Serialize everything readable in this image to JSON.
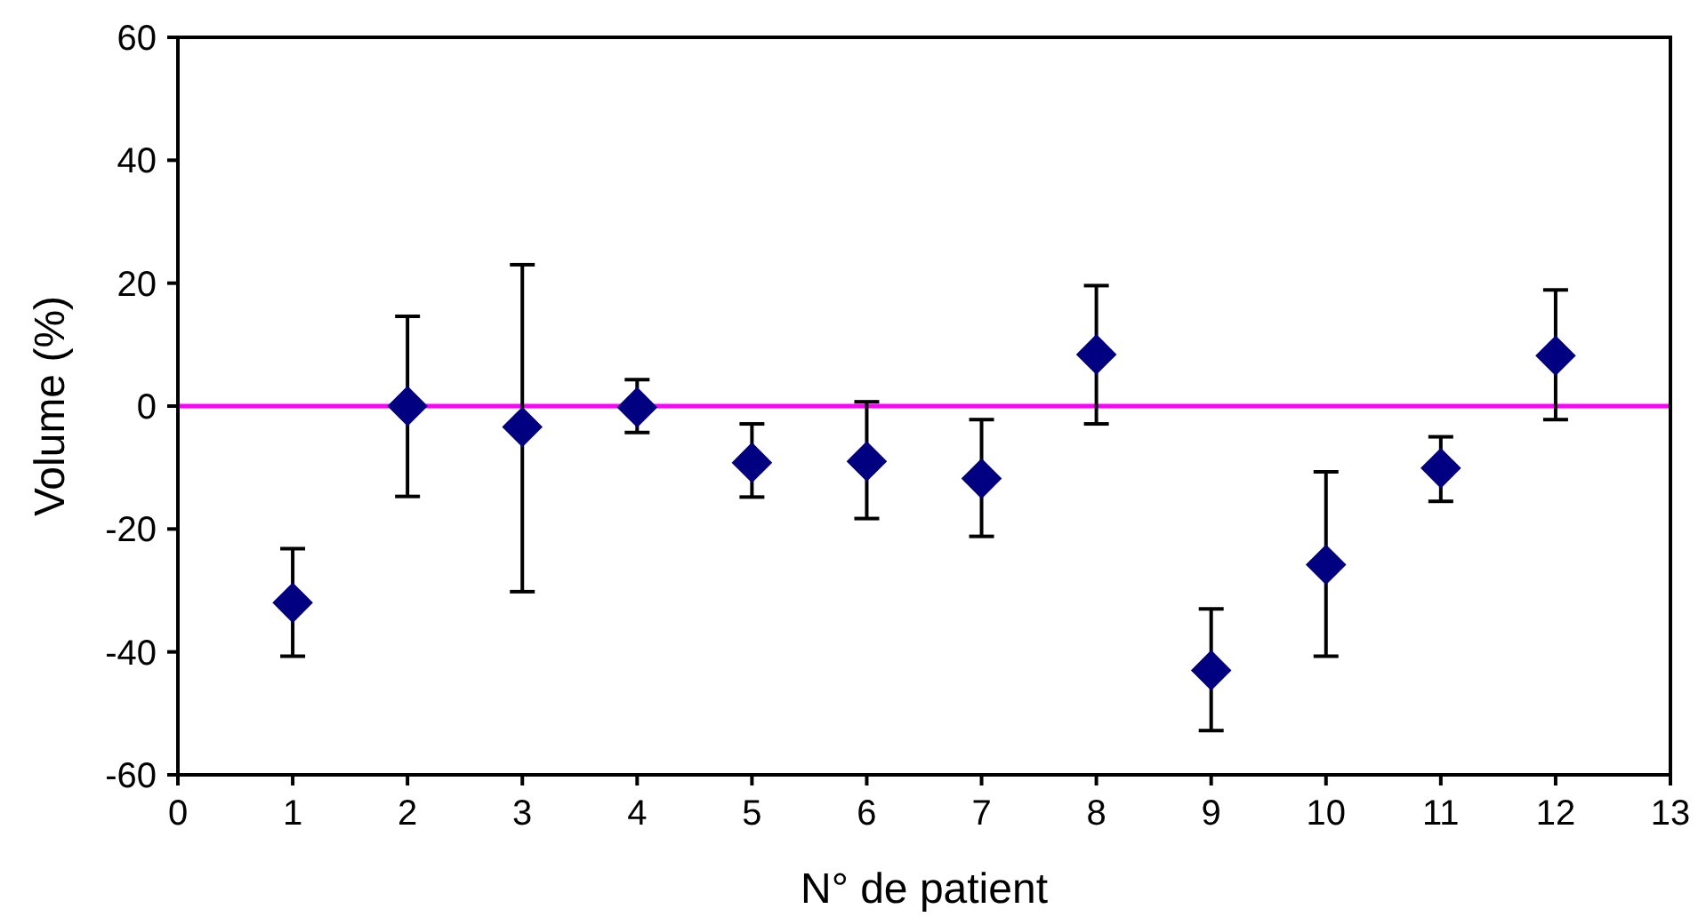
{
  "chart_data": {
    "type": "scatter",
    "xlabel": "N° de patient",
    "ylabel": "Volume (%)",
    "x": [
      1,
      2,
      3,
      4,
      5,
      6,
      7,
      8,
      9,
      10,
      11,
      12
    ],
    "series": [
      {
        "color": "#000080",
        "values": [
          -32,
          0,
          -3.4,
          -0.2,
          -9.2,
          -9,
          -11.8,
          8.4,
          -43,
          -25.8,
          -10.1,
          8.2
        ],
        "errors": [
          [
            -40.7,
            -23.2
          ],
          [
            -14.7,
            14.6
          ],
          [
            -30.2,
            23
          ],
          [
            -4.3,
            4.3
          ],
          [
            -14.8,
            -2.9
          ],
          [
            -18.3,
            0.7
          ],
          [
            -21.2,
            -2.2
          ],
          [
            -2.9,
            19.6
          ],
          [
            -52.8,
            -33
          ],
          [
            -40.7,
            -10.7
          ],
          [
            -15.5,
            -5
          ],
          [
            -2.2,
            18.9
          ]
        ]
      }
    ],
    "xlim": [
      0,
      13
    ],
    "xticks": [
      0,
      1,
      2,
      3,
      4,
      5,
      6,
      7,
      8,
      9,
      10,
      11,
      12,
      13
    ],
    "ylim": [
      -60,
      60
    ],
    "yticks": [
      -60,
      -40,
      -20,
      0,
      20,
      40,
      60
    ],
    "ref_lines": [
      {
        "axis": "y",
        "value": 0,
        "color": "#ff00ff"
      }
    ],
    "marker": "diamond",
    "grid": false
  }
}
